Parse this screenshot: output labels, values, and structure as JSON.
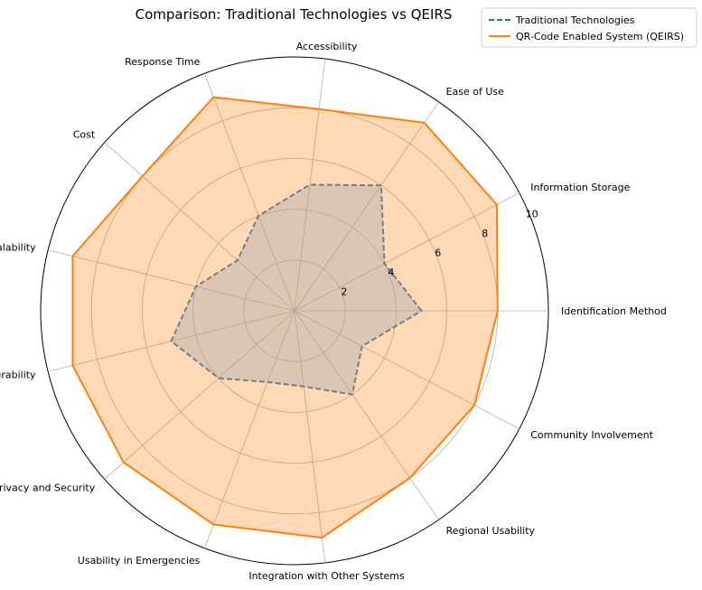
{
  "chart_data": {
    "type": "radar",
    "title": "Comparison: Traditional Technologies vs QEIRS",
    "categories": [
      "Identification Method",
      "Information Storage",
      "Ease of Use",
      "Accessibility",
      "Response Time",
      "Cost",
      "Scalability",
      "Durability",
      "Privacy and Security",
      "Usability in Emergencies",
      "Integration with Other Systems",
      "Regional Usability",
      "Community Involvement"
    ],
    "rlim": [
      0,
      10
    ],
    "radial_ticks": [
      2,
      4,
      6,
      8,
      10
    ],
    "grid": true,
    "legend_position": "top-right",
    "series": [
      {
        "name": "Traditional Technologies",
        "color": "#1f77b4",
        "line_style": "dashed",
        "fill": false,
        "values": [
          5,
          4,
          6,
          5,
          4,
          3,
          4,
          5,
          4,
          3,
          3,
          4,
          3
        ]
      },
      {
        "name": "QR-Code Enabled System (QEIRS)",
        "color": "#ff7f0e",
        "line_style": "solid",
        "fill": true,
        "fill_opacity": 0.3,
        "values": [
          8,
          9,
          9,
          8,
          9,
          8,
          9,
          9,
          9,
          9,
          9,
          8,
          8
        ]
      }
    ]
  }
}
